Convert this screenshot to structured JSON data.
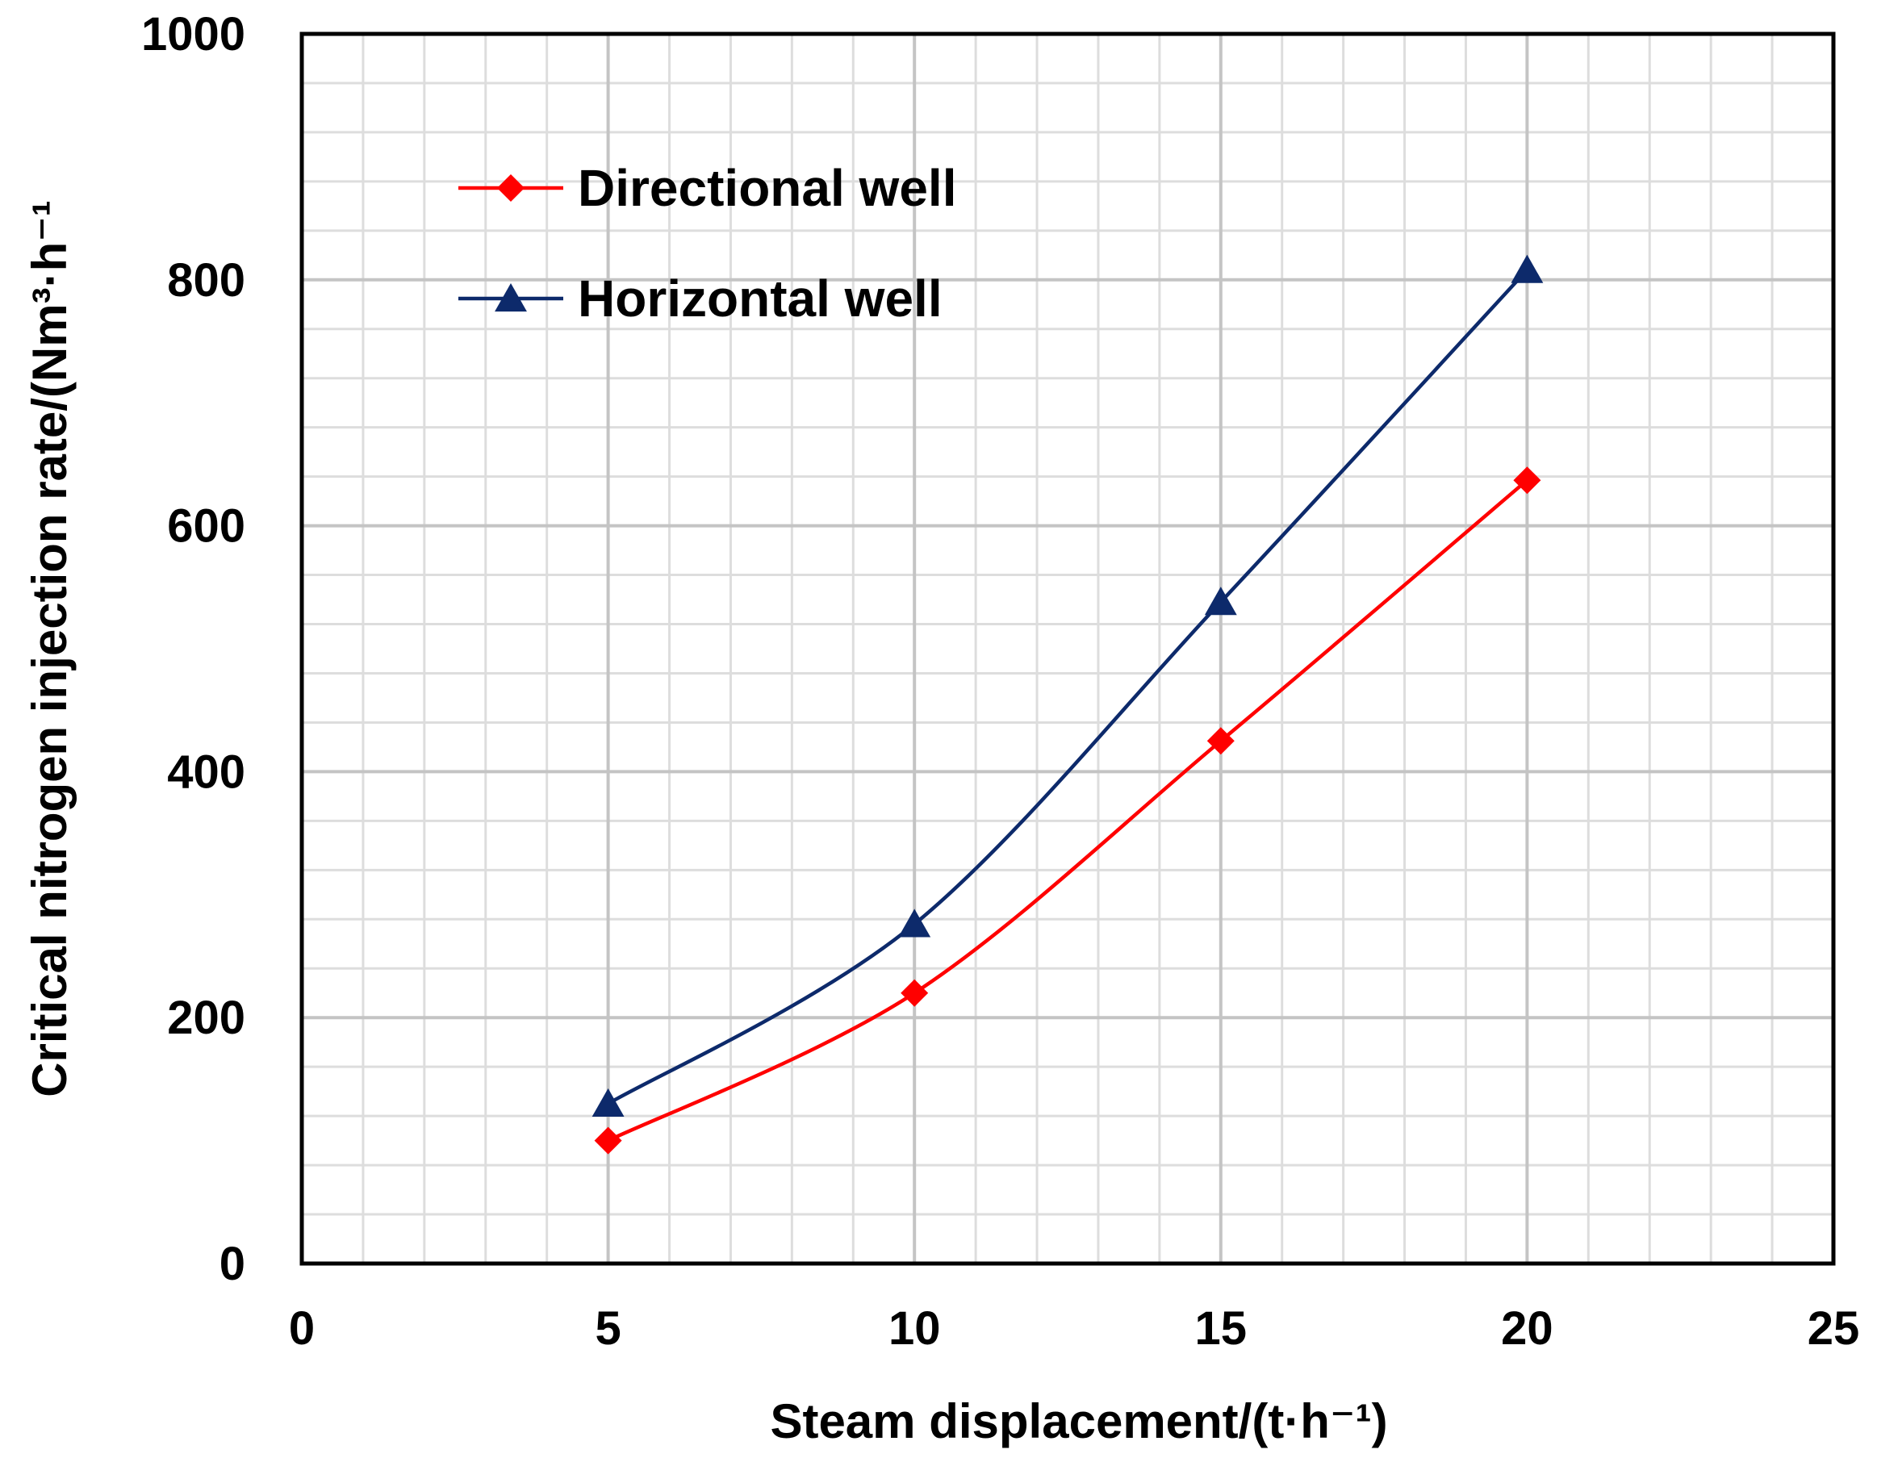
{
  "chart_data": {
    "type": "line",
    "title": "",
    "xlabel": "Steam displacement/(t·h⁻¹)",
    "ylabel": "Critical nitrogen injection rate/(Nm³·h⁻¹",
    "xlim": [
      0,
      25
    ],
    "ylim": [
      0,
      1000
    ],
    "x_major_ticks": [
      0,
      5,
      10,
      15,
      20,
      25
    ],
    "y_major_ticks": [
      0,
      200,
      400,
      600,
      800,
      1000
    ],
    "x_minor_step": 1,
    "y_minor_step": 40,
    "grid": true,
    "legend_position": "top-left",
    "series": [
      {
        "name": "Directional well",
        "color": "#ff0000",
        "marker": "diamond",
        "x": [
          5,
          10,
          15,
          20
        ],
        "y": [
          100,
          220,
          425,
          637
        ]
      },
      {
        "name": "Horizontal well",
        "color": "#0d2a6b",
        "marker": "triangle",
        "x": [
          5,
          10,
          15,
          20
        ],
        "y": [
          130,
          276,
          538,
          808
        ]
      }
    ]
  }
}
